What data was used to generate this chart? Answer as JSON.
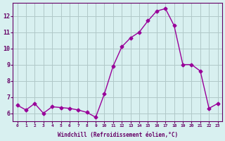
{
  "x_vals": [
    0,
    1,
    2,
    3,
    4,
    5,
    6,
    7,
    8,
    9,
    10,
    11,
    12,
    13,
    14,
    15,
    16,
    17,
    18,
    19,
    20,
    21,
    22,
    23
  ],
  "y": [
    6.5,
    6.2,
    6.6,
    6.0,
    6.4,
    6.35,
    6.3,
    6.2,
    6.05,
    5.75,
    7.2,
    8.9,
    10.1,
    10.65,
    11.0,
    11.7,
    12.3,
    12.45,
    11.4,
    9.0,
    9.0,
    8.6,
    6.3,
    6.6
  ],
  "line_color": "#990099",
  "marker_color": "#990099",
  "bg_color": "#d8f0f0",
  "grid_color": "#b0c8c8",
  "axis_label_color": "#660066",
  "tick_color": "#660066",
  "xlabel": "Windchill (Refroidissement éolien,°C)",
  "ylabel_ticks": [
    6,
    7,
    8,
    9,
    10,
    11,
    12
  ],
  "ylim": [
    5.5,
    12.8
  ],
  "xlim": [
    -0.5,
    23.5
  ]
}
